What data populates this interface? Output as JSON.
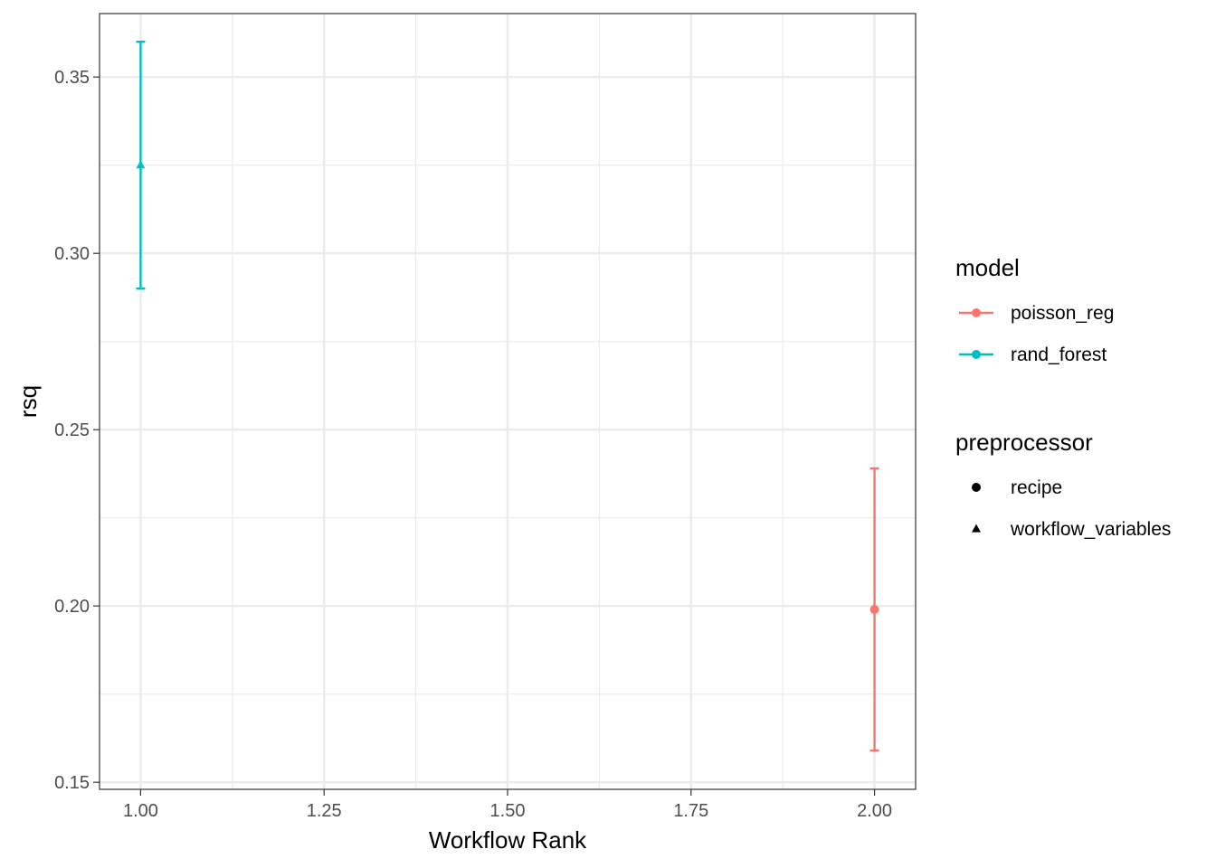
{
  "chart_data": {
    "type": "scatter",
    "xlabel": "Workflow Rank",
    "ylabel": "rsq",
    "xlim": [
      0.944,
      2.056
    ],
    "ylim": [
      0.148,
      0.368
    ],
    "x_ticks": [
      1.0,
      1.25,
      1.5,
      1.75,
      2.0
    ],
    "x_tick_labels": [
      "1.00",
      "1.25",
      "1.50",
      "1.75",
      "2.00"
    ],
    "y_ticks": [
      0.15,
      0.2,
      0.25,
      0.3,
      0.35
    ],
    "y_tick_labels": [
      "0.15",
      "0.20",
      "0.25",
      "0.30",
      "0.35"
    ],
    "grid": true,
    "legend_placement": "right",
    "legends": [
      {
        "title": "model",
        "kind": "color",
        "entries": [
          {
            "label": "poisson_reg",
            "color": "#F8766D"
          },
          {
            "label": "rand_forest",
            "color": "#00BFC4"
          }
        ]
      },
      {
        "title": "preprocessor",
        "kind": "shape",
        "entries": [
          {
            "label": "recipe",
            "shape": "circle"
          },
          {
            "label": "workflow_variables",
            "shape": "triangle"
          }
        ]
      }
    ],
    "points": [
      {
        "x": 1,
        "y": 0.325,
        "lower": 0.29,
        "upper": 0.36,
        "model": "rand_forest",
        "preprocessor": "workflow_variables",
        "color": "#00BFC4",
        "shape": "triangle"
      },
      {
        "x": 2,
        "y": 0.199,
        "lower": 0.159,
        "upper": 0.239,
        "model": "poisson_reg",
        "preprocessor": "recipe",
        "color": "#F8766D",
        "shape": "circle"
      }
    ]
  }
}
